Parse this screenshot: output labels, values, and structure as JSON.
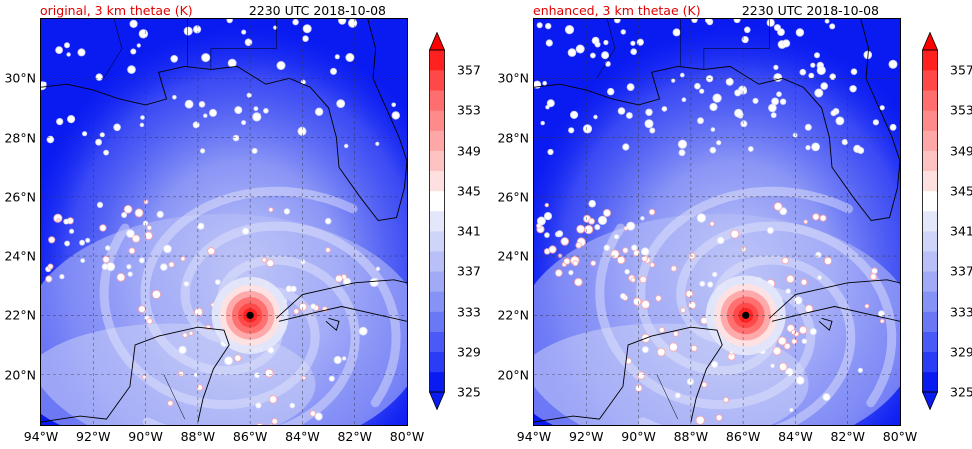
{
  "panels": [
    {
      "variant": "original",
      "title_left": "original, 3 km thetae (K)",
      "title_right": "2230 UTC 2018-10-08",
      "storm_center": {
        "lon": -86.0,
        "lat": 22.0
      },
      "storm_core_intensity": 0.85
    },
    {
      "variant": "enhanced",
      "title_left": "enhanced, 3 km thetae (K)",
      "title_right": "2230 UTC 2018-10-08",
      "storm_center": {
        "lon": -85.9,
        "lat": 22.0
      },
      "storm_core_intensity": 1.0
    }
  ],
  "map": {
    "lon_range": [
      -94,
      -80
    ],
    "lat_range": [
      18.3,
      32.0
    ],
    "lon_ticks": [
      -94,
      -92,
      -90,
      -88,
      -86,
      -84,
      -82,
      -80
    ],
    "lon_tick_labels": [
      "94°W",
      "92°W",
      "90°W",
      "88°W",
      "86°W",
      "84°W",
      "82°W",
      "80°W"
    ],
    "lat_ticks": [
      20,
      22,
      24,
      26,
      28,
      30
    ],
    "lat_tick_labels": [
      "20°N",
      "22°N",
      "24°N",
      "26°N",
      "28°N",
      "30°N"
    ],
    "grid": true,
    "gridline_style": "dashed"
  },
  "colorbar": {
    "levels": [
      325,
      327,
      329,
      331,
      333,
      335,
      337,
      339,
      341,
      343,
      345,
      347,
      349,
      351,
      353,
      355,
      357,
      359
    ],
    "tick_labels": [
      "325",
      "329",
      "333",
      "337",
      "341",
      "345",
      "349",
      "353",
      "357"
    ],
    "colors": [
      "#0a1bf2",
      "#2a3cf5",
      "#4a5af6",
      "#6a78f6",
      "#8592f6",
      "#a0aaf6",
      "#b8c0f7",
      "#cfd5f8",
      "#e4e7fa",
      "#ffffff",
      "#ffe0e0",
      "#ffc2c2",
      "#ffa6a6",
      "#ff8a8a",
      "#ff6e6e",
      "#ff4848",
      "#ff2020",
      "#ff0000"
    ],
    "extend": "both",
    "cmap_lower": "#0a1bf2",
    "cmap_upper": "#ff0000"
  }
}
